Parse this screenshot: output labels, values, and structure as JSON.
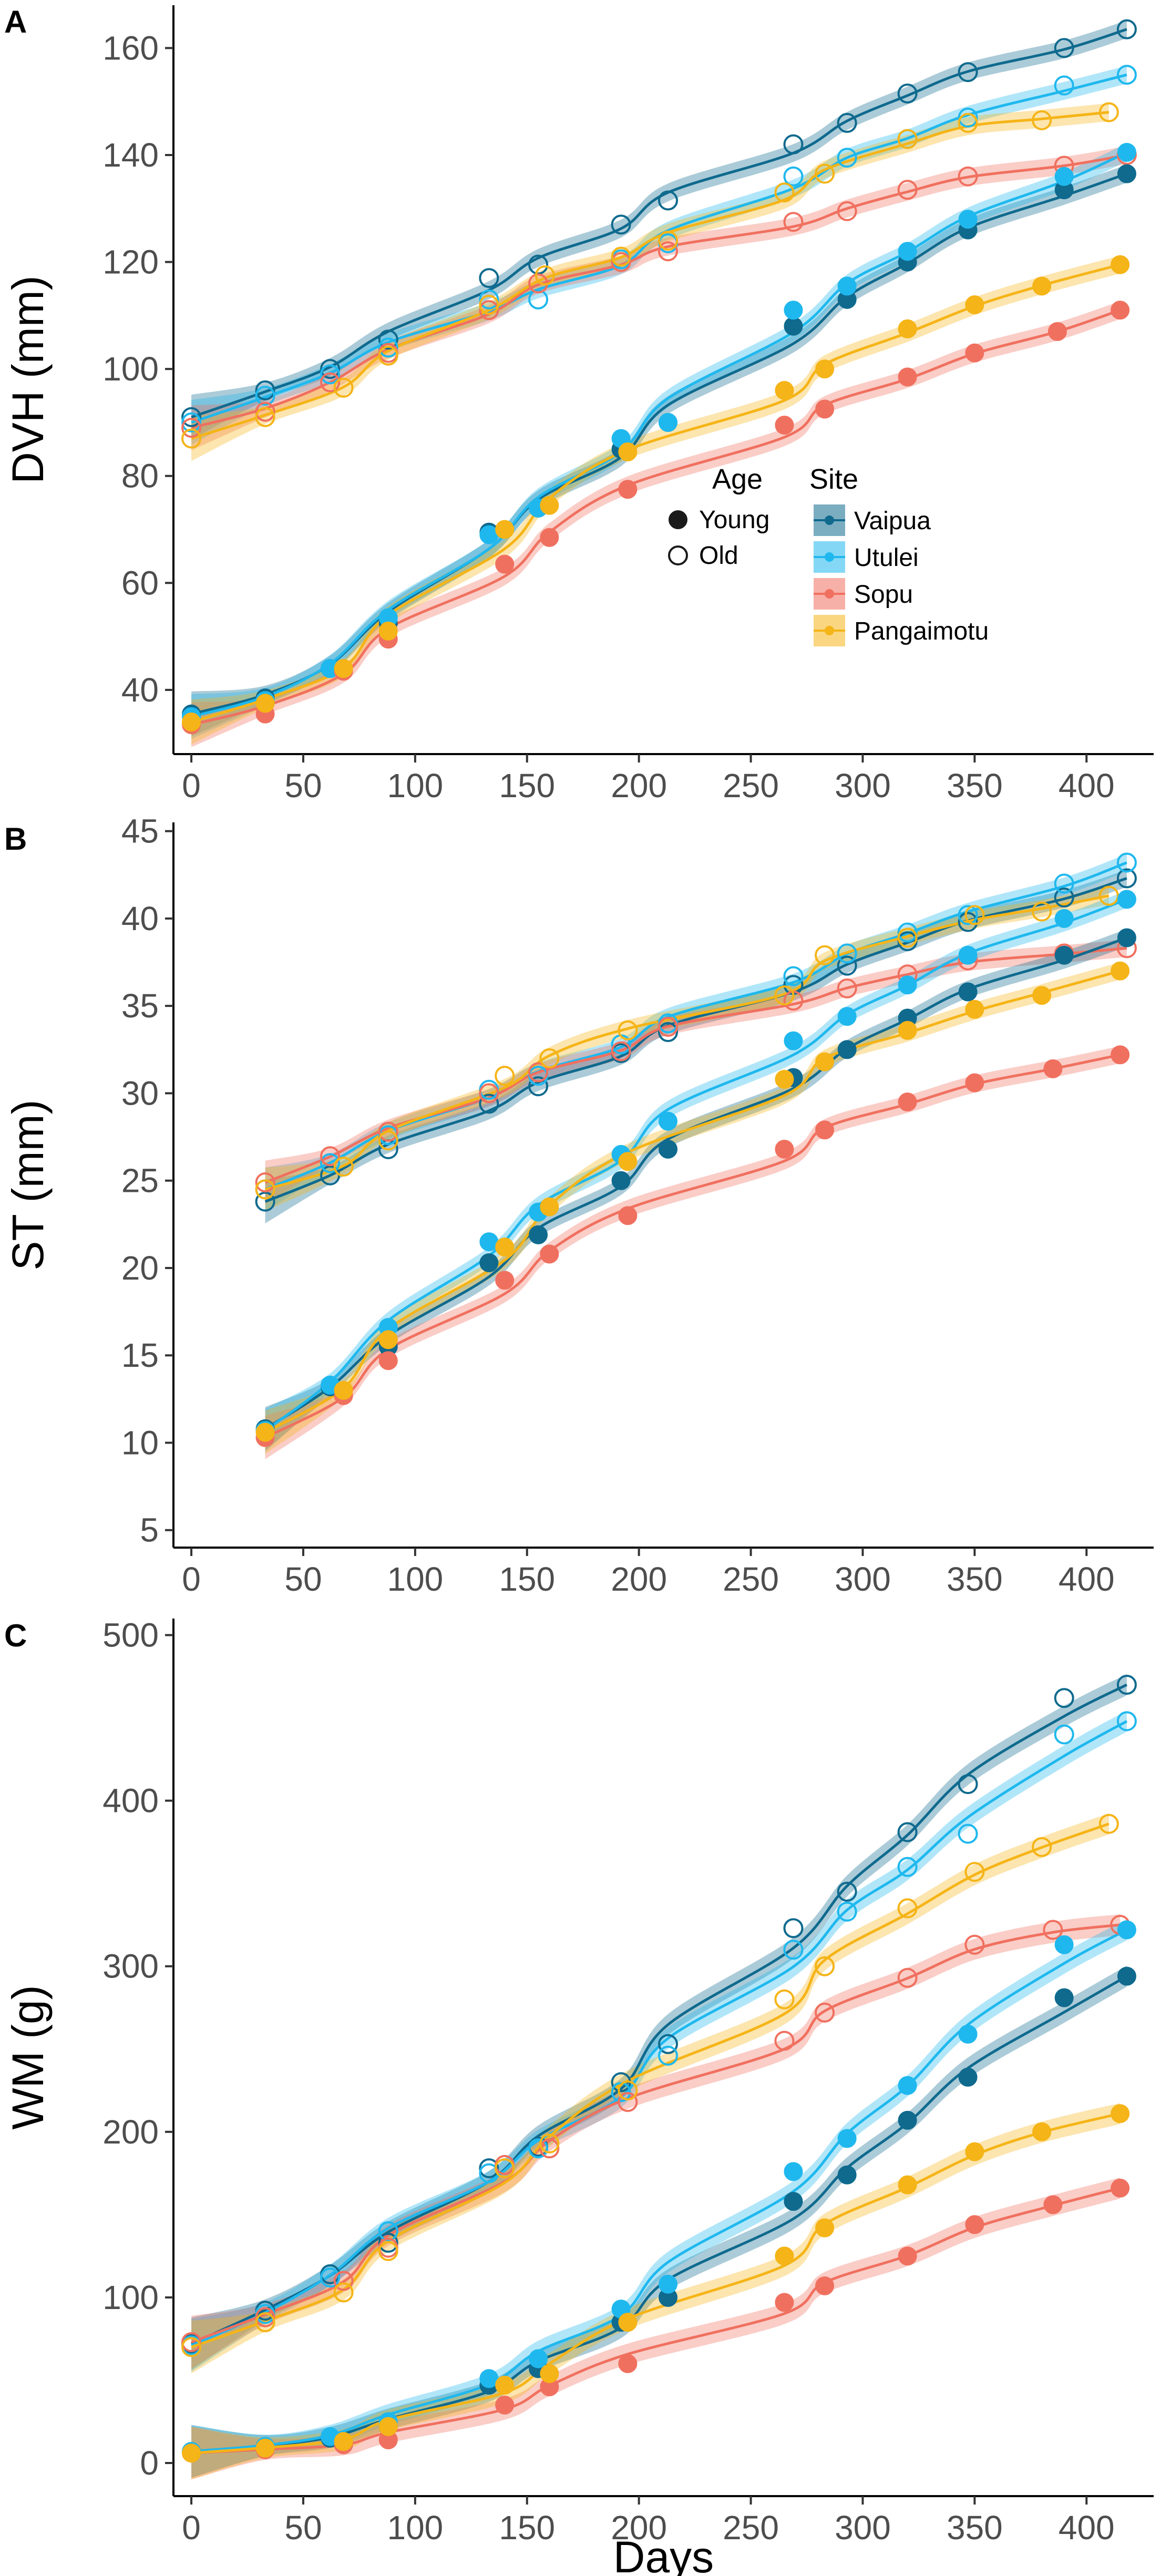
{
  "colors": {
    "Vaipua": "#0f6a8e",
    "Utulei": "#1fb8ee",
    "Sopu": "#f0705f",
    "Pangaimotu": "#f5b417"
  },
  "legend": {
    "age_title": "Age",
    "age_items": [
      "Young",
      "Old"
    ],
    "site_title": "Site",
    "site_items": [
      "Vaipua",
      "Utulei",
      "Sopu",
      "Pangaimotu"
    ]
  },
  "chart_data": [
    {
      "type": "scatter",
      "panel": "A",
      "ylabel": "DVH (mm)",
      "xlabel": "",
      "xlim": [
        -8,
        430
      ],
      "ylim": [
        28,
        168
      ],
      "xticks": [
        0,
        50,
        100,
        150,
        200,
        250,
        300,
        350,
        400
      ],
      "yticks": [
        40,
        60,
        80,
        100,
        120,
        140,
        160
      ],
      "series": [
        {
          "site": "Vaipua",
          "age": "Old",
          "x": [
            0,
            33,
            62,
            88,
            133,
            155,
            192,
            213,
            269,
            293,
            320,
            347,
            390,
            418
          ],
          "y": [
            91,
            96,
            100,
            105.5,
            117,
            119.5,
            127,
            131.5,
            142,
            146,
            151.5,
            155.5,
            160,
            163.5
          ]
        },
        {
          "site": "Utulei",
          "age": "Old",
          "x": [
            0,
            33,
            62,
            88,
            133,
            155,
            192,
            213,
            269,
            293,
            320,
            347,
            390,
            418
          ],
          "y": [
            90,
            95,
            99,
            104,
            113,
            113,
            120.5,
            123.5,
            136,
            139.5,
            143,
            147,
            153,
            155
          ]
        },
        {
          "site": "Sopu",
          "age": "Old",
          "x": [
            0,
            33,
            62,
            88,
            133,
            155,
            192,
            213,
            269,
            293,
            320,
            347,
            390,
            418
          ],
          "y": [
            89,
            92,
            97.5,
            103,
            111,
            116,
            120,
            122,
            127.5,
            129.5,
            133.5,
            136,
            138,
            140
          ]
        },
        {
          "site": "Pangaimotu",
          "age": "Old",
          "x": [
            0,
            33,
            68,
            88,
            133,
            158,
            192,
            213,
            265,
            283,
            320,
            347,
            380,
            410
          ],
          "y": [
            87,
            91,
            96.5,
            102.5,
            112,
            117.5,
            121,
            124,
            133,
            136.5,
            143,
            146,
            146.5,
            148
          ]
        },
        {
          "site": "Vaipua",
          "age": "Young",
          "x": [
            0,
            33,
            62,
            88,
            133,
            155,
            192,
            213,
            269,
            293,
            320,
            347,
            390,
            418
          ],
          "y": [
            35.5,
            38.5,
            44,
            52.5,
            69.5,
            74,
            85,
            90,
            108,
            113,
            120,
            126,
            133.5,
            136.5
          ]
        },
        {
          "site": "Utulei",
          "age": "Young",
          "x": [
            0,
            33,
            62,
            88,
            133,
            155,
            192,
            213,
            269,
            293,
            320,
            347,
            390,
            418
          ],
          "y": [
            35,
            38,
            44,
            53.5,
            69,
            74,
            87,
            90,
            111,
            115.5,
            122,
            128,
            136,
            140.5
          ]
        },
        {
          "site": "Sopu",
          "age": "Young",
          "x": [
            0,
            33,
            68,
            88,
            140,
            160,
            195,
            265,
            283,
            320,
            350,
            387,
            415
          ],
          "y": [
            33.5,
            35.5,
            43.5,
            49.5,
            63.5,
            68.5,
            77.5,
            89.5,
            92.5,
            98.5,
            103,
            107,
            111
          ]
        },
        {
          "site": "Pangaimotu",
          "age": "Young",
          "x": [
            0,
            33,
            68,
            88,
            140,
            160,
            195,
            265,
            283,
            320,
            350,
            380,
            415
          ],
          "y": [
            34,
            37.5,
            44,
            51,
            70,
            74.5,
            84.5,
            96,
            100,
            107.5,
            112,
            115.5,
            119.5
          ]
        }
      ]
    },
    {
      "type": "scatter",
      "panel": "B",
      "ylabel": "ST (mm)",
      "xlabel": "",
      "xlim": [
        -8,
        430
      ],
      "ylim": [
        4,
        45.5
      ],
      "xticks": [
        0,
        50,
        100,
        150,
        200,
        250,
        300,
        350,
        400
      ],
      "yticks": [
        5,
        10,
        15,
        20,
        25,
        30,
        35,
        40,
        45
      ],
      "series": [
        {
          "site": "Vaipua",
          "age": "Old",
          "x": [
            33,
            62,
            88,
            133,
            155,
            192,
            213,
            269,
            293,
            320,
            347,
            390,
            418
          ],
          "y": [
            23.8,
            25.3,
            26.8,
            29.4,
            30.4,
            32.3,
            33.5,
            36.2,
            37.3,
            38.7,
            39.8,
            41.2,
            42.3
          ]
        },
        {
          "site": "Utulei",
          "age": "Old",
          "x": [
            33,
            62,
            88,
            133,
            155,
            192,
            213,
            269,
            293,
            320,
            347,
            390,
            418
          ],
          "y": [
            24.5,
            26.0,
            27.6,
            30.2,
            31.0,
            32.8,
            34.0,
            36.7,
            38.0,
            39.2,
            40.2,
            42.0,
            43.2
          ]
        },
        {
          "site": "Sopu",
          "age": "Old",
          "x": [
            33,
            62,
            88,
            133,
            155,
            192,
            213,
            269,
            293,
            320,
            347,
            390,
            418
          ],
          "y": [
            24.9,
            26.4,
            27.8,
            30.0,
            31.2,
            32.4,
            33.8,
            35.3,
            36.0,
            36.8,
            37.6,
            38.0,
            38.3
          ]
        },
        {
          "site": "Pangaimotu",
          "age": "Old",
          "x": [
            33,
            68,
            88,
            140,
            160,
            195,
            265,
            283,
            320,
            350,
            380,
            410
          ],
          "y": [
            24.5,
            25.8,
            27.3,
            31.0,
            32.0,
            33.6,
            35.6,
            37.9,
            38.9,
            40.2,
            40.4,
            41.3
          ]
        },
        {
          "site": "Vaipua",
          "age": "Young",
          "x": [
            33,
            62,
            88,
            133,
            155,
            192,
            213,
            269,
            293,
            320,
            347,
            390,
            418
          ],
          "y": [
            10.8,
            13.2,
            15.5,
            20.3,
            21.9,
            25.0,
            26.8,
            30.9,
            32.5,
            34.3,
            35.8,
            37.9,
            38.9
          ]
        },
        {
          "site": "Utulei",
          "age": "Young",
          "x": [
            33,
            62,
            88,
            133,
            155,
            192,
            213,
            269,
            293,
            320,
            347,
            390,
            418
          ],
          "y": [
            10.7,
            13.3,
            16.6,
            21.5,
            23.2,
            26.5,
            28.4,
            33.0,
            34.4,
            36.2,
            37.9,
            40.0,
            41.1
          ]
        },
        {
          "site": "Sopu",
          "age": "Young",
          "x": [
            33,
            68,
            88,
            140,
            160,
            195,
            265,
            283,
            320,
            350,
            385,
            415
          ],
          "y": [
            10.3,
            12.7,
            14.7,
            19.3,
            20.8,
            23.0,
            26.8,
            27.9,
            29.5,
            30.6,
            31.4,
            32.2
          ]
        },
        {
          "site": "Pangaimotu",
          "age": "Young",
          "x": [
            33,
            68,
            88,
            140,
            160,
            195,
            265,
            283,
            320,
            350,
            380,
            415
          ],
          "y": [
            10.6,
            13.0,
            15.9,
            21.2,
            23.5,
            26.1,
            30.8,
            31.8,
            33.6,
            34.8,
            35.6,
            37.0
          ]
        }
      ]
    },
    {
      "type": "scatter",
      "panel": "C",
      "ylabel": "WM (g)",
      "xlabel": "Days",
      "xlim": [
        -8,
        430
      ],
      "ylim": [
        -20,
        510
      ],
      "xticks": [
        0,
        50,
        100,
        150,
        200,
        250,
        300,
        350,
        400
      ],
      "yticks": [
        0,
        100,
        200,
        300,
        400,
        500
      ],
      "series": [
        {
          "site": "Vaipua",
          "age": "Old",
          "x": [
            0,
            33,
            62,
            88,
            133,
            155,
            192,
            213,
            269,
            293,
            320,
            347,
            390,
            418
          ],
          "y": [
            72,
            92,
            114,
            133,
            178,
            191,
            230,
            253,
            323,
            345,
            381,
            410,
            462,
            470
          ]
        },
        {
          "site": "Utulei",
          "age": "Old",
          "x": [
            0,
            33,
            62,
            88,
            133,
            155,
            192,
            213,
            269,
            293,
            320,
            347,
            390,
            418
          ],
          "y": [
            71,
            90,
            112,
            140,
            175,
            190,
            224,
            246,
            310,
            333,
            360,
            380,
            440,
            448
          ]
        },
        {
          "site": "Sopu",
          "age": "Old",
          "x": [
            0,
            33,
            68,
            88,
            140,
            160,
            195,
            265,
            283,
            320,
            350,
            385,
            415
          ],
          "y": [
            73,
            88,
            110,
            130,
            180,
            190,
            218,
            255,
            272,
            293,
            313,
            322,
            325
          ]
        },
        {
          "site": "Pangaimotu",
          "age": "Old",
          "x": [
            0,
            33,
            68,
            88,
            140,
            160,
            195,
            265,
            283,
            320,
            350,
            380,
            410
          ],
          "y": [
            70,
            85,
            103,
            128,
            178,
            193,
            225,
            280,
            300,
            335,
            357,
            372,
            386
          ]
        },
        {
          "site": "Vaipua",
          "age": "Young",
          "x": [
            0,
            33,
            62,
            88,
            133,
            155,
            192,
            213,
            269,
            293,
            320,
            347,
            390,
            418
          ],
          "y": [
            7,
            10,
            15,
            22,
            47,
            57,
            85,
            100,
            158,
            174,
            207,
            233,
            281,
            294
          ]
        },
        {
          "site": "Utulei",
          "age": "Young",
          "x": [
            0,
            33,
            62,
            88,
            133,
            155,
            192,
            213,
            269,
            293,
            320,
            347,
            390,
            418
          ],
          "y": [
            7,
            10,
            16,
            25,
            51,
            63,
            93,
            108,
            176,
            196,
            228,
            259,
            313,
            322
          ]
        },
        {
          "site": "Sopu",
          "age": "Young",
          "x": [
            0,
            33,
            68,
            88,
            140,
            160,
            195,
            265,
            283,
            320,
            350,
            385,
            415
          ],
          "y": [
            6,
            8,
            11,
            14,
            35,
            46,
            60,
            97,
            107,
            125,
            144,
            156,
            166
          ]
        },
        {
          "site": "Pangaimotu",
          "age": "Young",
          "x": [
            0,
            33,
            68,
            88,
            140,
            160,
            195,
            265,
            283,
            320,
            350,
            380,
            415
          ],
          "y": [
            6,
            9,
            13,
            22,
            47,
            54,
            85,
            125,
            142,
            168,
            188,
            200,
            211
          ]
        }
      ]
    }
  ]
}
